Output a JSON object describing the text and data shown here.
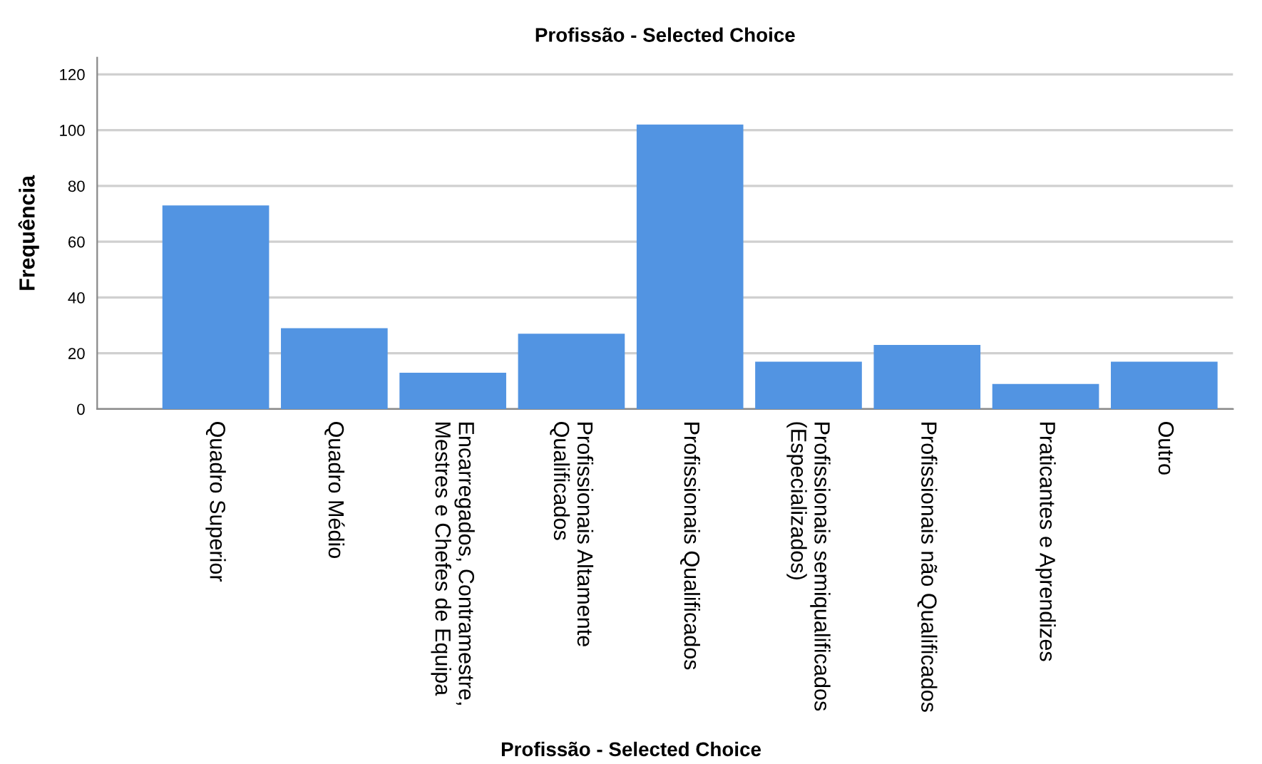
{
  "chart_data": {
    "type": "bar",
    "title": "Profissão - Selected Choice",
    "ylabel": "Frequência",
    "xlabel": "Profissão - Selected Choice",
    "categories": [
      "Quadro Superior",
      "Quadro Médio",
      "Encarregados, Contramestre,\nMestres e Chefes de Equipa",
      "Profissionais Altamente\nQualificados",
      "Profissionais Qualificados",
      "Profissionais semiqualificados\n(Especializados)",
      "Profissionais não Qualificados",
      "Praticantes e Aprendizes",
      "Outro"
    ],
    "values": [
      73,
      29,
      13,
      27,
      102,
      17,
      23,
      9,
      17
    ],
    "color": "#5294e2",
    "ylim": [
      0,
      126
    ],
    "yticks": [
      0,
      20,
      40,
      60,
      80,
      100,
      120
    ],
    "grid": "y",
    "legend": false
  }
}
